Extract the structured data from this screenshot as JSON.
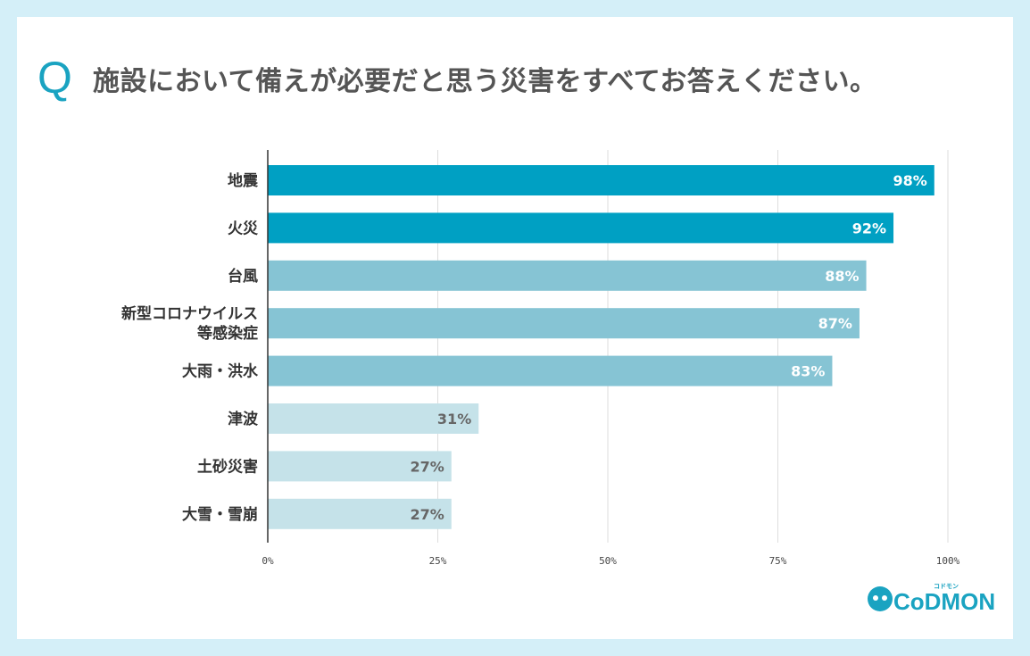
{
  "question": {
    "mark": "Q",
    "text": "施設において備えが必要だと思う災害をすべてお答えください。"
  },
  "logo": {
    "text": "CoDMON",
    "tagline": "コドモン"
  },
  "colors": {
    "background": "#d4eff8",
    "strong": "#00a0c3",
    "medium": "#86c4d4",
    "light": "#c5e2e9",
    "label_dark": "#333333",
    "value_light": "#ffffff",
    "value_dark": "#666666",
    "grid": "#dddddd"
  },
  "chart_data": {
    "type": "bar",
    "orientation": "horizontal",
    "title": "施設において備えが必要だと思う災害をすべてお答えください。",
    "categories": [
      [
        "地震"
      ],
      [
        "火災"
      ],
      [
        "台風"
      ],
      [
        "新型コロナウイルス",
        "等感染症"
      ],
      [
        "大雨・洪水"
      ],
      [
        "津波"
      ],
      [
        "土砂災害"
      ],
      [
        "大雪・雪崩"
      ]
    ],
    "values": [
      98,
      92,
      88,
      87,
      83,
      31,
      27,
      27
    ],
    "value_labels": [
      "98%",
      "92%",
      "88%",
      "87%",
      "83%",
      "31%",
      "27%",
      "27%"
    ],
    "tiers": [
      "strong",
      "strong",
      "medium",
      "medium",
      "medium",
      "light",
      "light",
      "light"
    ],
    "xlim": [
      0,
      100
    ],
    "xticks": [
      0,
      25,
      50,
      75,
      100
    ],
    "xtick_labels": [
      "0%",
      "25%",
      "50%",
      "75%",
      "100%"
    ],
    "grid": true
  }
}
